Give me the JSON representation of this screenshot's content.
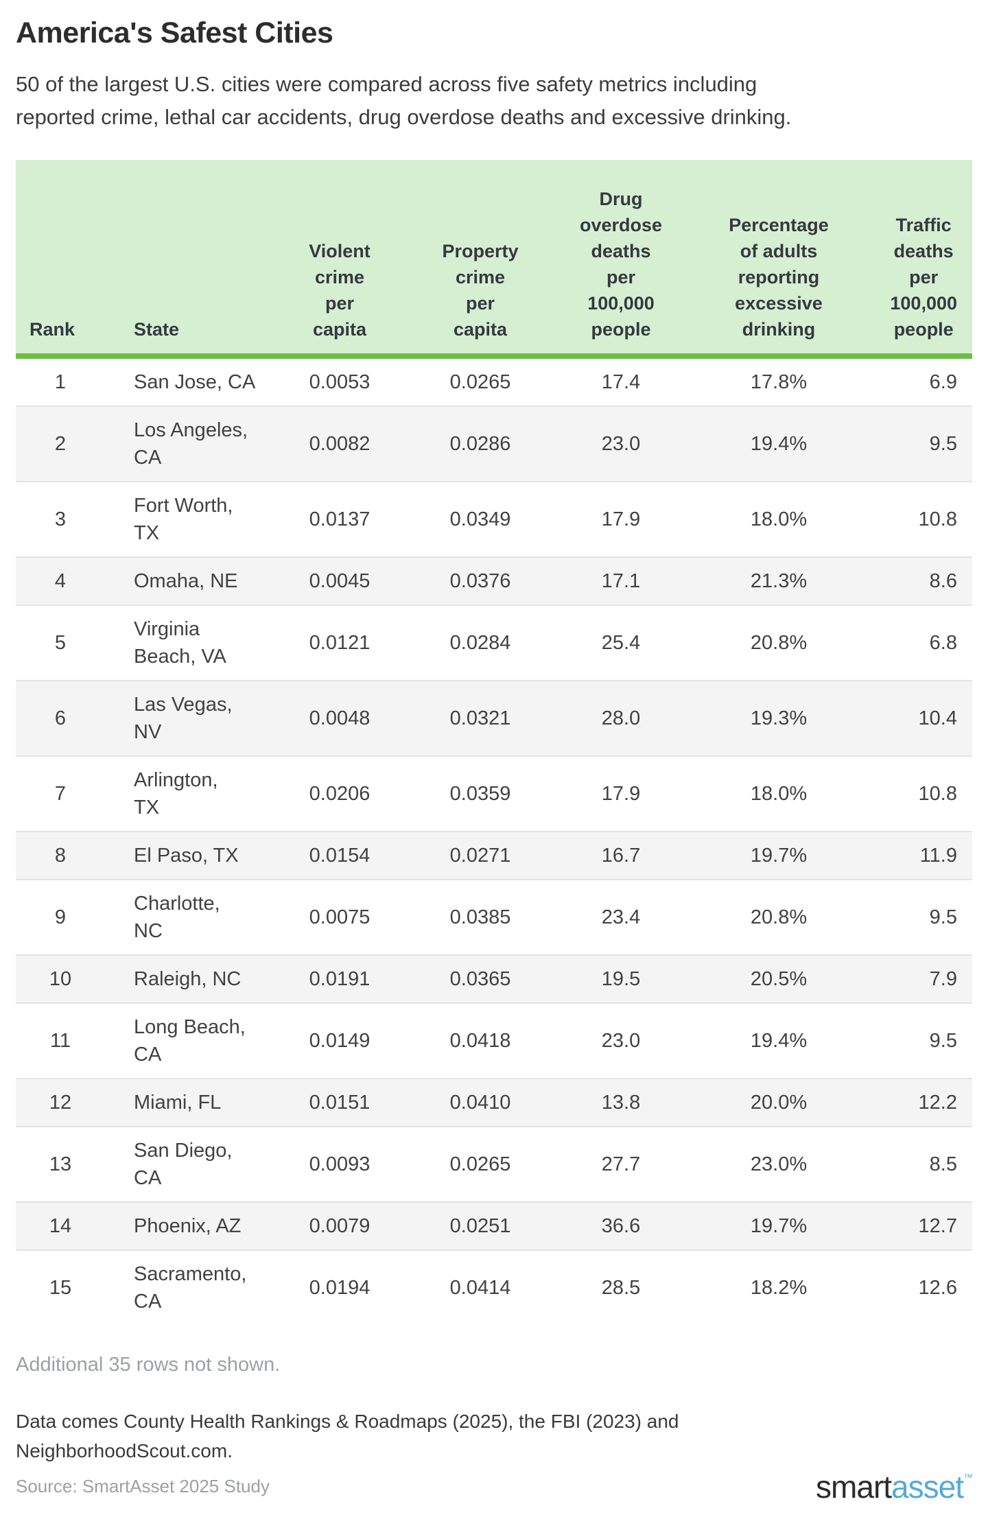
{
  "chart_data": {
    "type": "table",
    "title": "America's Safest Cities",
    "subtitle": "50 of the largest U.S. cities were compared across five safety metrics including\nreported crime, lethal car accidents, drug overdose deaths and excessive drinking.",
    "columns": [
      {
        "id": "rank",
        "label": "Rank"
      },
      {
        "id": "state",
        "label": "State"
      },
      {
        "id": "violent",
        "label": "Violent\ncrime\nper\ncapita"
      },
      {
        "id": "property",
        "label": "Property\ncrime\nper\ncapita"
      },
      {
        "id": "drug",
        "label": "Drug\noverdose\ndeaths\nper\n100,000\npeople"
      },
      {
        "id": "drinking",
        "label": "Percentage\nof adults\nreporting\nexcessive\ndrinking"
      },
      {
        "id": "traffic",
        "label": "Traffic\ndeaths\nper\n100,000\npeople"
      }
    ],
    "rows": [
      {
        "rank": "1",
        "state": "San Jose, CA",
        "violent": "0.0053",
        "property": "0.0265",
        "drug": "17.4",
        "drinking": "17.8%",
        "traffic": "6.9"
      },
      {
        "rank": "2",
        "state": "Los Angeles,\nCA",
        "violent": "0.0082",
        "property": "0.0286",
        "drug": "23.0",
        "drinking": "19.4%",
        "traffic": "9.5"
      },
      {
        "rank": "3",
        "state": "Fort Worth,\nTX",
        "violent": "0.0137",
        "property": "0.0349",
        "drug": "17.9",
        "drinking": "18.0%",
        "traffic": "10.8"
      },
      {
        "rank": "4",
        "state": "Omaha, NE",
        "violent": "0.0045",
        "property": "0.0376",
        "drug": "17.1",
        "drinking": "21.3%",
        "traffic": "8.6"
      },
      {
        "rank": "5",
        "state": "Virginia\nBeach, VA",
        "violent": "0.0121",
        "property": "0.0284",
        "drug": "25.4",
        "drinking": "20.8%",
        "traffic": "6.8"
      },
      {
        "rank": "6",
        "state": "Las Vegas,\nNV",
        "violent": "0.0048",
        "property": "0.0321",
        "drug": "28.0",
        "drinking": "19.3%",
        "traffic": "10.4"
      },
      {
        "rank": "7",
        "state": "Arlington,\nTX",
        "violent": "0.0206",
        "property": "0.0359",
        "drug": "17.9",
        "drinking": "18.0%",
        "traffic": "10.8"
      },
      {
        "rank": "8",
        "state": "El Paso, TX",
        "violent": "0.0154",
        "property": "0.0271",
        "drug": "16.7",
        "drinking": "19.7%",
        "traffic": "11.9"
      },
      {
        "rank": "9",
        "state": "Charlotte,\nNC",
        "violent": "0.0075",
        "property": "0.0385",
        "drug": "23.4",
        "drinking": "20.8%",
        "traffic": "9.5"
      },
      {
        "rank": "10",
        "state": "Raleigh, NC",
        "violent": "0.0191",
        "property": "0.0365",
        "drug": "19.5",
        "drinking": "20.5%",
        "traffic": "7.9"
      },
      {
        "rank": "11",
        "state": "Long Beach,\nCA",
        "violent": "0.0149",
        "property": "0.0418",
        "drug": "23.0",
        "drinking": "19.4%",
        "traffic": "9.5"
      },
      {
        "rank": "12",
        "state": "Miami, FL",
        "violent": "0.0151",
        "property": "0.0410",
        "drug": "13.8",
        "drinking": "20.0%",
        "traffic": "12.2"
      },
      {
        "rank": "13",
        "state": "San Diego,\nCA",
        "violent": "0.0093",
        "property": "0.0265",
        "drug": "27.7",
        "drinking": "23.0%",
        "traffic": "8.5"
      },
      {
        "rank": "14",
        "state": "Phoenix, AZ",
        "violent": "0.0079",
        "property": "0.0251",
        "drug": "36.6",
        "drinking": "19.7%",
        "traffic": "12.7"
      },
      {
        "rank": "15",
        "state": "Sacramento,\nCA",
        "violent": "0.0194",
        "property": "0.0414",
        "drug": "28.5",
        "drinking": "18.2%",
        "traffic": "12.6"
      }
    ],
    "additional_note": "Additional 35 rows not shown.",
    "footnote": "Data comes County Health Rankings & Roadmaps (2025), the FBI (2023) and\nNeighborhoodScout.com.",
    "source": "Source: SmartAsset 2025 Study"
  },
  "branding": {
    "logo_prefix": "smart",
    "logo_suffix": "asset",
    "logo_tm": "™"
  },
  "colors": {
    "header_bg": "#d7efd1",
    "header_border": "#6cbe45",
    "row_stripe": "#f4f4f4",
    "row_divider": "#e3e3e3",
    "text_dark": "#3a3a3a",
    "text_muted": "#9da0a3",
    "logo_dark": "#2b2b2b",
    "logo_blue": "#54a9d7"
  }
}
